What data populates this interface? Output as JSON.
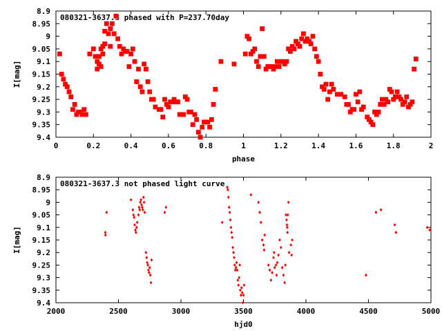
{
  "chart_data": [
    {
      "type": "scatter",
      "title": "080321-3637.3 phased with P=237.70day",
      "xlabel": "phase",
      "ylabel": "I[mag]",
      "xlim": [
        0,
        2
      ],
      "ylim": [
        8.9,
        9.4
      ],
      "y_inverted": true,
      "grid": false,
      "marker_color": "#ff0000",
      "marker": "filled-square",
      "x_ticks": [
        "0",
        "0.2",
        "0.4",
        "0.6",
        "0.8",
        "1",
        "1.2",
        "1.4",
        "1.6",
        "1.8",
        "2"
      ],
      "y_ticks": [
        "8.9",
        "8.95",
        "9",
        "9.05",
        "9.1",
        "9.15",
        "9.2",
        "9.25",
        "9.3",
        "9.35",
        "9.4"
      ],
      "points": [
        [
          0.02,
          9.07
        ],
        [
          0.03,
          9.15
        ],
        [
          0.04,
          9.17
        ],
        [
          0.05,
          9.19
        ],
        [
          0.06,
          9.2
        ],
        [
          0.07,
          9.22
        ],
        [
          0.08,
          9.24
        ],
        [
          0.09,
          9.29
        ],
        [
          0.1,
          9.27
        ],
        [
          0.11,
          9.31
        ],
        [
          0.12,
          9.3
        ],
        [
          0.13,
          9.3
        ],
        [
          0.14,
          9.31
        ],
        [
          0.15,
          9.29
        ],
        [
          0.16,
          9.31
        ],
        [
          0.18,
          9.07
        ],
        [
          0.2,
          9.05
        ],
        [
          0.21,
          9.08
        ],
        [
          0.22,
          9.1
        ],
        [
          0.22,
          9.13
        ],
        [
          0.23,
          9.11
        ],
        [
          0.23,
          9.08
        ],
        [
          0.24,
          9.05
        ],
        [
          0.24,
          9.12
        ],
        [
          0.25,
          9.07
        ],
        [
          0.25,
          9.04
        ],
        [
          0.26,
          9.03
        ],
        [
          0.26,
          8.98
        ],
        [
          0.27,
          8.95
        ],
        [
          0.28,
          8.99
        ],
        [
          0.29,
          8.97
        ],
        [
          0.29,
          9.04
        ],
        [
          0.3,
          8.95
        ],
        [
          0.31,
          8.99
        ],
        [
          0.32,
          8.92
        ],
        [
          0.33,
          9.01
        ],
        [
          0.34,
          9.04
        ],
        [
          0.35,
          9.07
        ],
        [
          0.36,
          9.05
        ],
        [
          0.37,
          9.06
        ],
        [
          0.38,
          9.06
        ],
        [
          0.39,
          9.12
        ],
        [
          0.4,
          9.07
        ],
        [
          0.41,
          9.05
        ],
        [
          0.42,
          9.1
        ],
        [
          0.43,
          9.18
        ],
        [
          0.44,
          9.13
        ],
        [
          0.45,
          9.2
        ],
        [
          0.46,
          9.22
        ],
        [
          0.47,
          9.11
        ],
        [
          0.48,
          9.13
        ],
        [
          0.49,
          9.18
        ],
        [
          0.5,
          9.22
        ],
        [
          0.51,
          9.25
        ],
        [
          0.52,
          9.25
        ],
        [
          0.53,
          9.28
        ],
        [
          0.55,
          9.29
        ],
        [
          0.56,
          9.29
        ],
        [
          0.57,
          9.32
        ],
        [
          0.58,
          9.25
        ],
        [
          0.59,
          9.27
        ],
        [
          0.6,
          9.28
        ],
        [
          0.61,
          9.26
        ],
        [
          0.62,
          9.26
        ],
        [
          0.63,
          9.25
        ],
        [
          0.64,
          9.26
        ],
        [
          0.65,
          9.26
        ],
        [
          0.66,
          9.31
        ],
        [
          0.67,
          9.31
        ],
        [
          0.68,
          9.31
        ],
        [
          0.69,
          9.24
        ],
        [
          0.7,
          9.25
        ],
        [
          0.71,
          9.3
        ],
        [
          0.72,
          9.3
        ],
        [
          0.73,
          9.35
        ],
        [
          0.74,
          9.31
        ],
        [
          0.75,
          9.33
        ],
        [
          0.76,
          9.38
        ],
        [
          0.77,
          9.4
        ],
        [
          0.78,
          9.36
        ],
        [
          0.79,
          9.34
        ],
        [
          0.8,
          9.34
        ],
        [
          0.81,
          9.34
        ],
        [
          0.82,
          9.36
        ],
        [
          0.83,
          9.33
        ],
        [
          0.84,
          9.27
        ],
        [
          0.85,
          9.21
        ],
        [
          0.88,
          9.1
        ],
        [
          0.95,
          9.11
        ],
        [
          1.01,
          9.07
        ],
        [
          1.02,
          9.0
        ],
        [
          1.03,
          9.01
        ],
        [
          1.04,
          9.07
        ],
        [
          1.05,
          9.06
        ],
        [
          1.06,
          9.05
        ],
        [
          1.07,
          9.1
        ],
        [
          1.08,
          9.12
        ],
        [
          1.09,
          9.08
        ],
        [
          1.1,
          8.97
        ],
        [
          1.11,
          9.08
        ],
        [
          1.12,
          9.13
        ],
        [
          1.13,
          9.12
        ],
        [
          1.14,
          9.12
        ],
        [
          1.15,
          9.12
        ],
        [
          1.16,
          9.13
        ],
        [
          1.17,
          9.12
        ],
        [
          1.18,
          9.1
        ],
        [
          1.19,
          9.12
        ],
        [
          1.2,
          9.1
        ],
        [
          1.21,
          9.1
        ],
        [
          1.22,
          9.11
        ],
        [
          1.23,
          9.1
        ],
        [
          1.24,
          9.05
        ],
        [
          1.25,
          9.06
        ],
        [
          1.26,
          9.04
        ],
        [
          1.27,
          9.05
        ],
        [
          1.28,
          9.02
        ],
        [
          1.29,
          9.03
        ],
        [
          1.3,
          9.04
        ],
        [
          1.31,
          9.01
        ],
        [
          1.32,
          8.99
        ],
        [
          1.33,
          9.02
        ],
        [
          1.34,
          9.01
        ],
        [
          1.35,
          9.02
        ],
        [
          1.36,
          9.03
        ],
        [
          1.37,
          9.0
        ],
        [
          1.38,
          9.05
        ],
        [
          1.39,
          9.08
        ],
        [
          1.4,
          9.1
        ],
        [
          1.41,
          9.15
        ],
        [
          1.42,
          9.2
        ],
        [
          1.43,
          9.21
        ],
        [
          1.44,
          9.19
        ],
        [
          1.45,
          9.25
        ],
        [
          1.46,
          9.22
        ],
        [
          1.47,
          9.19
        ],
        [
          1.48,
          9.21
        ],
        [
          1.5,
          9.23
        ],
        [
          1.52,
          9.23
        ],
        [
          1.54,
          9.24
        ],
        [
          1.55,
          9.27
        ],
        [
          1.56,
          9.27
        ],
        [
          1.57,
          9.3
        ],
        [
          1.58,
          9.29
        ],
        [
          1.59,
          9.29
        ],
        [
          1.6,
          9.23
        ],
        [
          1.61,
          9.26
        ],
        [
          1.62,
          9.22
        ],
        [
          1.63,
          9.29
        ],
        [
          1.64,
          9.28
        ],
        [
          1.66,
          9.32
        ],
        [
          1.67,
          9.33
        ],
        [
          1.68,
          9.34
        ],
        [
          1.69,
          9.35
        ],
        [
          1.7,
          9.3
        ],
        [
          1.71,
          9.31
        ],
        [
          1.72,
          9.3
        ],
        [
          1.73,
          9.27
        ],
        [
          1.74,
          9.25
        ],
        [
          1.75,
          9.27
        ],
        [
          1.76,
          9.25
        ],
        [
          1.77,
          9.26
        ],
        [
          1.78,
          9.21
        ],
        [
          1.79,
          9.22
        ],
        [
          1.8,
          9.25
        ],
        [
          1.81,
          9.24
        ],
        [
          1.82,
          9.22
        ],
        [
          1.83,
          9.24
        ],
        [
          1.84,
          9.25
        ],
        [
          1.85,
          9.27
        ],
        [
          1.86,
          9.26
        ],
        [
          1.87,
          9.24
        ],
        [
          1.88,
          9.28
        ],
        [
          1.89,
          9.27
        ],
        [
          1.9,
          9.26
        ],
        [
          1.91,
          9.13
        ],
        [
          1.92,
          9.09
        ]
      ]
    },
    {
      "type": "scatter",
      "title": "080321-3637.3 not phased light curve",
      "xlabel": "hjd0",
      "ylabel": "I[mag]",
      "xlim": [
        2000,
        5000
      ],
      "ylim": [
        8.9,
        9.4
      ],
      "y_inverted": true,
      "grid": false,
      "marker_color": "#ff0000",
      "marker": "filled-diamond",
      "x_ticks": [
        "2000",
        "2500",
        "3000",
        "3500",
        "4000",
        "4500",
        "5000"
      ],
      "y_ticks": [
        "8.9",
        "8.95",
        "9",
        "9.05",
        "9.1",
        "9.15",
        "9.2",
        "9.25",
        "9.3",
        "9.35",
        "9.4"
      ],
      "points": [
        [
          2395,
          9.12
        ],
        [
          2396,
          9.13
        ],
        [
          2405,
          9.04
        ],
        [
          2600,
          8.99
        ],
        [
          2615,
          9.03
        ],
        [
          2620,
          9.05
        ],
        [
          2625,
          9.06
        ],
        [
          2630,
          9.09
        ],
        [
          2635,
          9.11
        ],
        [
          2640,
          9.12
        ],
        [
          2645,
          9.1
        ],
        [
          2650,
          9.08
        ],
        [
          2660,
          9.05
        ],
        [
          2665,
          9.02
        ],
        [
          2670,
          9.03
        ],
        [
          2675,
          9.0
        ],
        [
          2680,
          8.99
        ],
        [
          2685,
          9.01
        ],
        [
          2690,
          9.02
        ],
        [
          2695,
          9.03
        ],
        [
          2700,
          8.98
        ],
        [
          2705,
          9.0
        ],
        [
          2710,
          9.04
        ],
        [
          2720,
          9.2
        ],
        [
          2725,
          9.22
        ],
        [
          2730,
          9.24
        ],
        [
          2735,
          9.25
        ],
        [
          2740,
          9.27
        ],
        [
          2745,
          9.28
        ],
        [
          2750,
          9.26
        ],
        [
          2755,
          9.29
        ],
        [
          2760,
          9.32
        ],
        [
          2765,
          9.23
        ],
        [
          2870,
          9.04
        ],
        [
          2880,
          9.02
        ],
        [
          3330,
          9.08
        ],
        [
          3370,
          8.94
        ],
        [
          3375,
          8.95
        ],
        [
          3380,
          8.98
        ],
        [
          3385,
          9.02
        ],
        [
          3390,
          9.04
        ],
        [
          3395,
          9.07
        ],
        [
          3400,
          9.1
        ],
        [
          3405,
          9.12
        ],
        [
          3410,
          9.14
        ],
        [
          3415,
          9.18
        ],
        [
          3420,
          9.2
        ],
        [
          3425,
          9.22
        ],
        [
          3430,
          9.25
        ],
        [
          3435,
          9.27
        ],
        [
          3440,
          9.26
        ],
        [
          3445,
          9.24
        ],
        [
          3450,
          9.27
        ],
        [
          3455,
          9.31
        ],
        [
          3460,
          9.33
        ],
        [
          3465,
          9.3
        ],
        [
          3470,
          9.25
        ],
        [
          3475,
          9.35
        ],
        [
          3480,
          9.37
        ],
        [
          3485,
          9.34
        ],
        [
          3490,
          9.36
        ],
        [
          3495,
          9.4
        ],
        [
          3500,
          9.37
        ],
        [
          3505,
          9.33
        ],
        [
          3560,
          8.97
        ],
        [
          3620,
          9.0
        ],
        [
          3630,
          9.04
        ],
        [
          3640,
          9.08
        ],
        [
          3650,
          9.15
        ],
        [
          3660,
          9.17
        ],
        [
          3665,
          9.19
        ],
        [
          3670,
          9.13
        ],
        [
          3700,
          9.25
        ],
        [
          3710,
          9.27
        ],
        [
          3720,
          9.31
        ],
        [
          3730,
          9.28
        ],
        [
          3740,
          9.22
        ],
        [
          3745,
          9.2
        ],
        [
          3750,
          9.26
        ],
        [
          3760,
          9.25
        ],
        [
          3765,
          9.29
        ],
        [
          3770,
          9.24
        ],
        [
          3780,
          9.21
        ],
        [
          3790,
          9.15
        ],
        [
          3800,
          9.18
        ],
        [
          3810,
          9.26
        ],
        [
          3820,
          9.29
        ],
        [
          3830,
          9.32
        ],
        [
          3835,
          9.25
        ],
        [
          3840,
          9.05
        ],
        [
          3845,
          9.07
        ],
        [
          3848,
          9.09
        ],
        [
          3850,
          9.1
        ],
        [
          3852,
          9.12
        ],
        [
          3855,
          9.05
        ],
        [
          3860,
          9.0
        ],
        [
          3865,
          9.2
        ],
        [
          3880,
          9.17
        ],
        [
          3885,
          9.21
        ],
        [
          3890,
          9.15
        ],
        [
          4480,
          9.29
        ],
        [
          4560,
          9.04
        ],
        [
          4600,
          9.03
        ],
        [
          4710,
          9.09
        ],
        [
          4720,
          9.12
        ],
        [
          4970,
          9.1
        ],
        [
          4990,
          9.11
        ]
      ]
    }
  ]
}
